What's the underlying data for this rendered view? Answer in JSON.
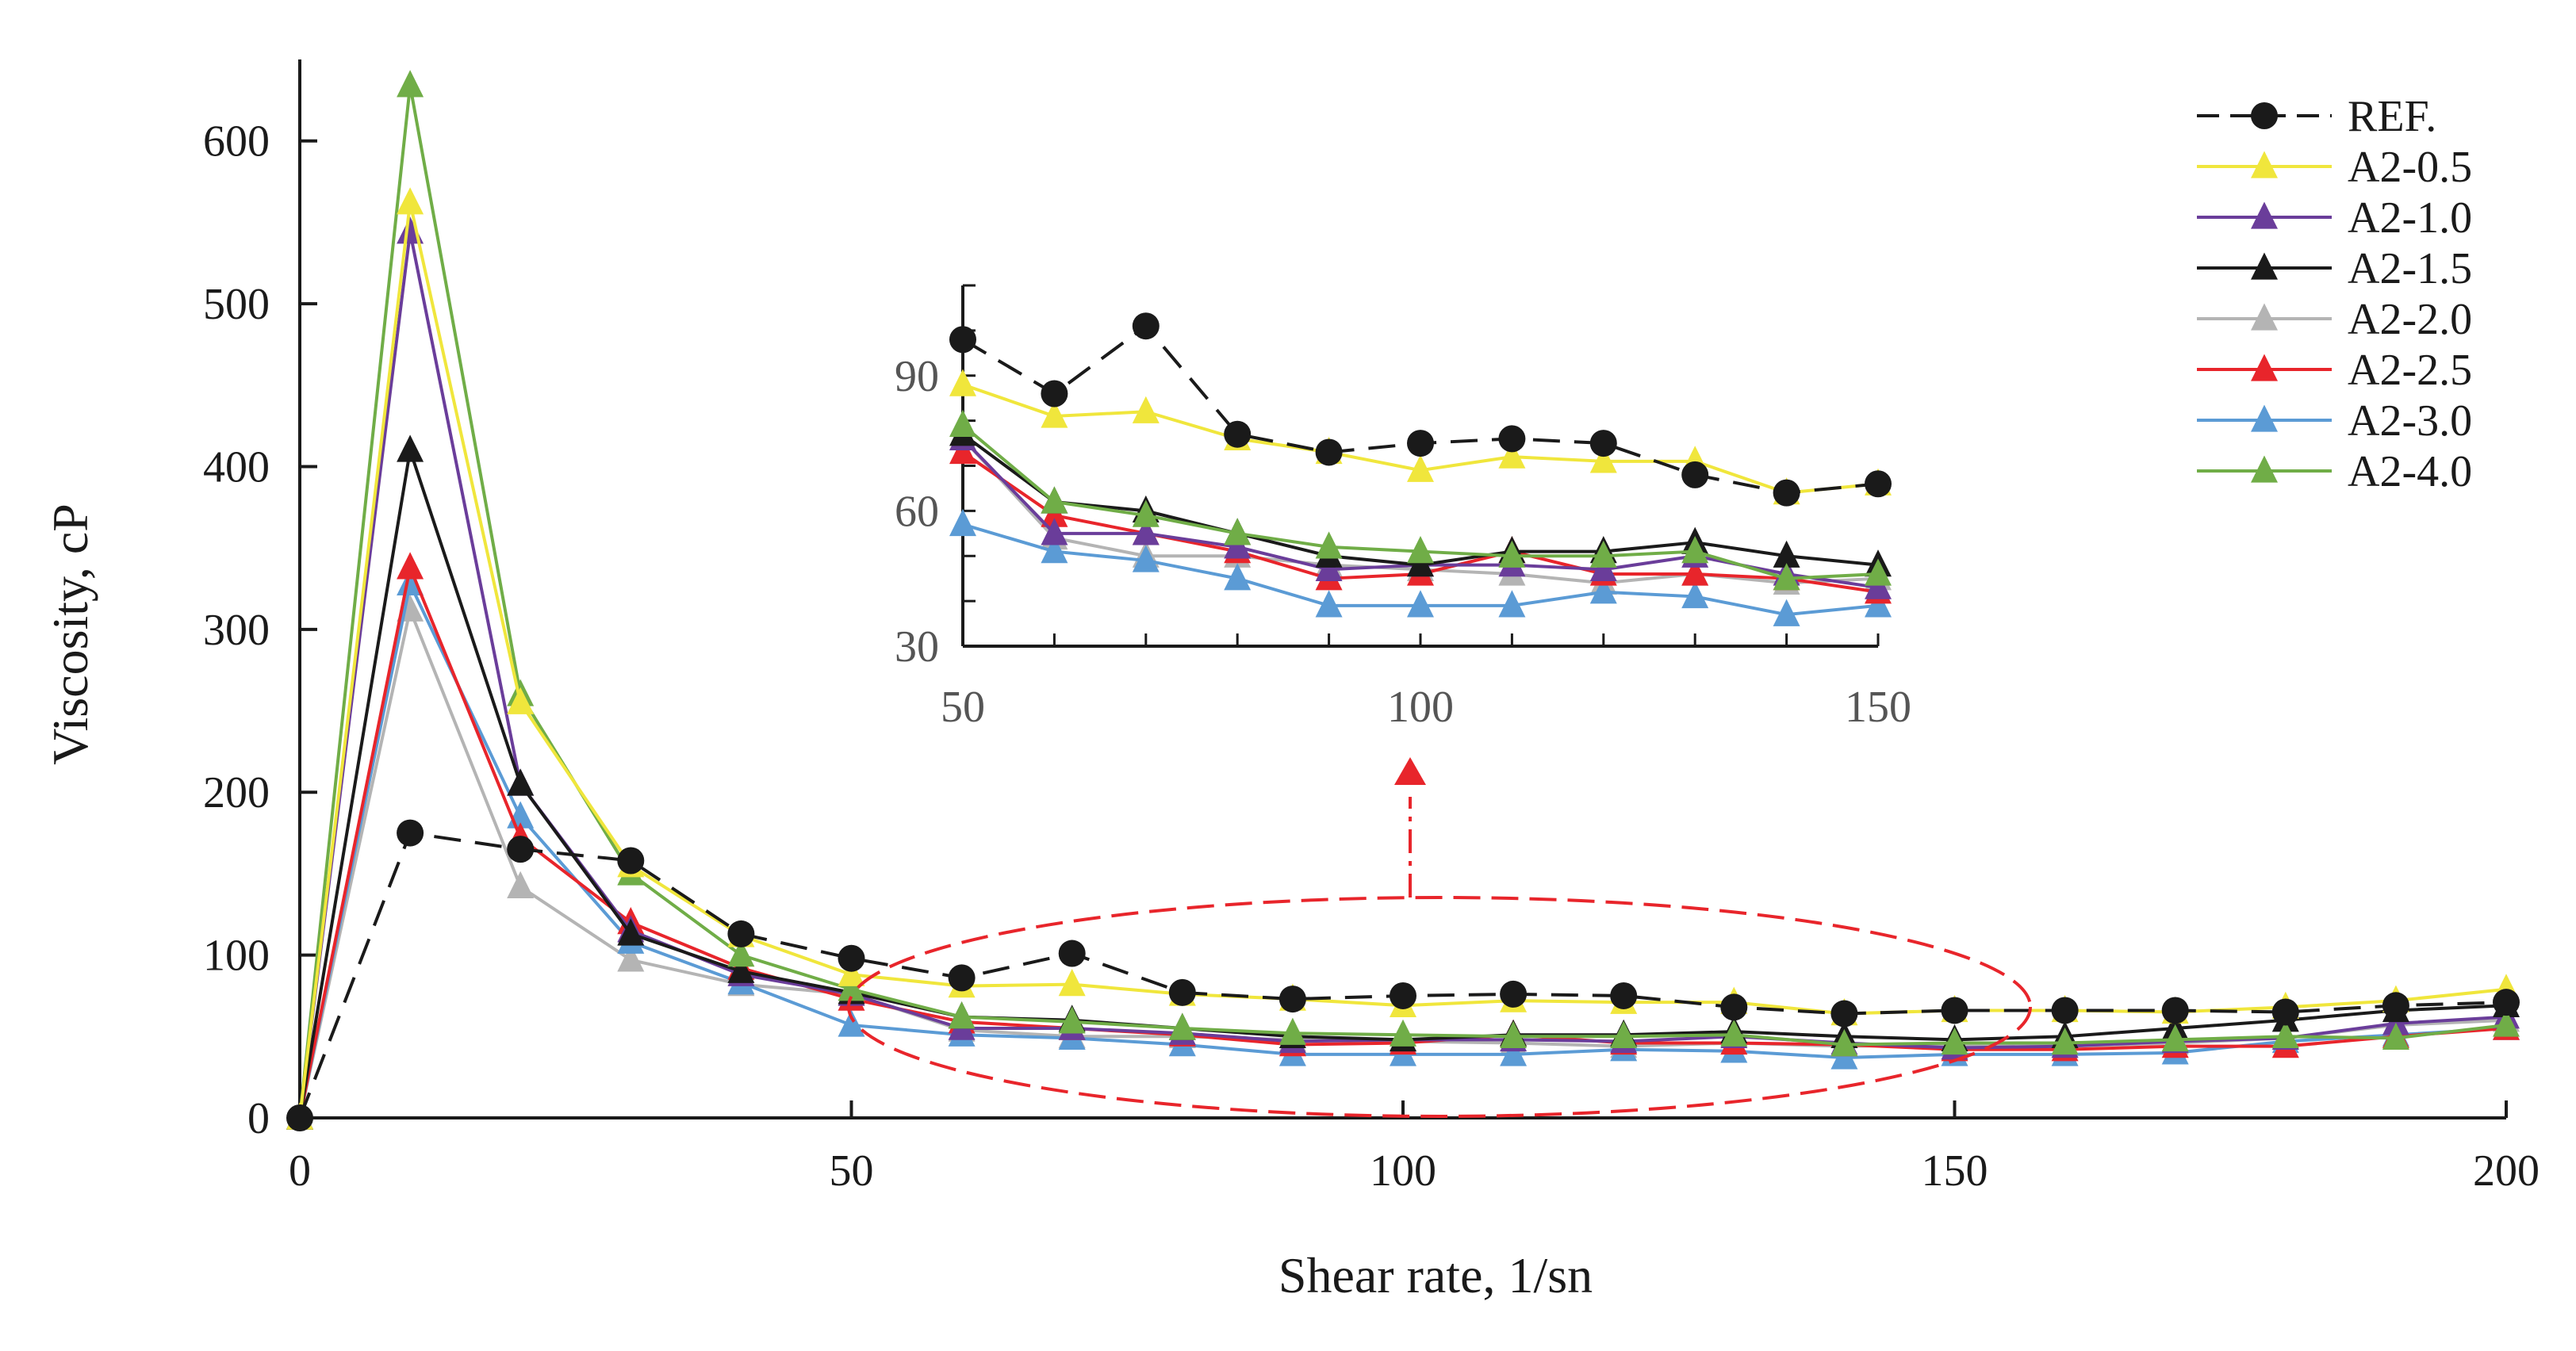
{
  "chart_data": {
    "type": "line",
    "xlabel": "Shear rate, 1/sn",
    "ylabel": "Viscosity, cP",
    "xlim": [
      0,
      200
    ],
    "ylim": [
      0,
      650
    ],
    "x_ticks": [
      "0",
      "50",
      "100",
      "150",
      "200"
    ],
    "y_ticks": [
      "0",
      "100",
      "200",
      "300",
      "400",
      "500",
      "600"
    ],
    "grid": false,
    "legend_position": "top-right",
    "x": [
      0,
      10,
      20,
      30,
      40,
      50,
      60,
      70,
      80,
      90,
      100,
      110,
      120,
      130,
      140,
      150,
      160,
      170,
      180,
      190,
      200
    ],
    "series": [
      {
        "name": "REF.",
        "color": "#1a1a1a",
        "marker": "circle",
        "dash": true,
        "values": [
          0,
          175,
          165,
          158,
          113,
          98,
          86,
          101,
          77,
          73,
          75,
          76,
          75,
          68,
          64,
          66,
          66,
          66,
          65,
          69,
          71
        ]
      },
      {
        "name": "A2-0.5",
        "color": "#f0e63c",
        "marker": "triangle",
        "values": [
          0,
          562,
          255,
          155,
          112,
          88,
          81,
          82,
          76,
          73,
          69,
          72,
          71,
          71,
          64,
          66,
          66,
          65,
          68,
          72,
          79
        ]
      },
      {
        "name": "A2-1.0",
        "color": "#6a3d9a",
        "marker": "triangle",
        "values": [
          0,
          544,
          205,
          115,
          88,
          76,
          55,
          55,
          52,
          47,
          48,
          48,
          47,
          50,
          46,
          43,
          44,
          47,
          49,
          58,
          62
        ]
      },
      {
        "name": "A2-1.5",
        "color": "#1a1a1a",
        "marker": "triangle",
        "values": [
          0,
          410,
          205,
          113,
          90,
          77,
          62,
          60,
          55,
          50,
          48,
          51,
          51,
          53,
          50,
          48,
          50,
          55,
          60,
          66,
          69
        ]
      },
      {
        "name": "A2-2.0",
        "color": "#b4b4b4",
        "marker": "triangle",
        "values": [
          0,
          312,
          142,
          97,
          82,
          76,
          54,
          50,
          50,
          48,
          47,
          46,
          44,
          46,
          44,
          45,
          44,
          46,
          49,
          57,
          60
        ]
      },
      {
        "name": "A2-2.5",
        "color": "#e8252b",
        "marker": "triangle",
        "values": [
          0,
          338,
          172,
          120,
          92,
          73,
          59,
          55,
          51,
          45,
          46,
          51,
          46,
          46,
          45,
          42,
          42,
          44,
          44,
          50,
          55
        ]
      },
      {
        "name": "A2-3.0",
        "color": "#5b9bd5",
        "marker": "triangle",
        "values": [
          0,
          328,
          185,
          108,
          83,
          57,
          51,
          49,
          45,
          39,
          39,
          39,
          42,
          41,
          37,
          39,
          39,
          40,
          47,
          51,
          55
        ]
      },
      {
        "name": "A2-4.0",
        "color": "#70ad47",
        "marker": "triangle",
        "values": [
          0,
          634,
          260,
          150,
          100,
          79,
          62,
          59,
          55,
          52,
          51,
          50,
          50,
          51,
          45,
          46,
          46,
          48,
          50,
          49,
          57
        ]
      }
    ],
    "inset": {
      "xlim": [
        50,
        150
      ],
      "ylim": [
        30,
        110
      ],
      "x_ticks": [
        "50",
        "100",
        "150"
      ],
      "y_ticks": [
        "30",
        "60",
        "90"
      ]
    },
    "annotation_color": "#e8252b"
  }
}
